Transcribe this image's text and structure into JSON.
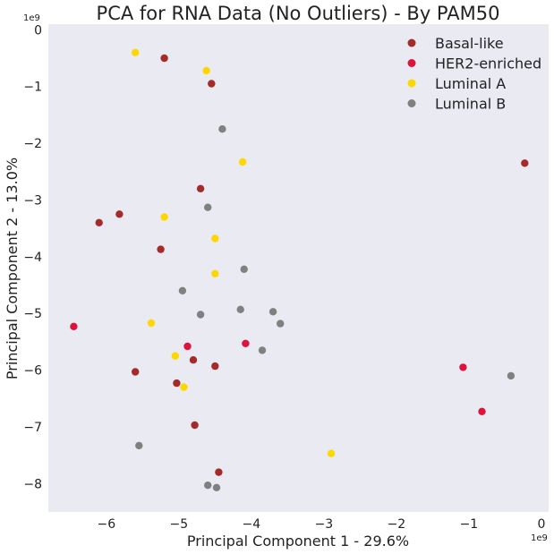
{
  "chart_data": {
    "type": "scatter",
    "title": "PCA for RNA Data (No Outliers) - By PAM50",
    "xlabel": "Principal Component 1 - 29.6%",
    "ylabel": "Principal Component 2 - 13.0%",
    "x_offset_label": "1e9",
    "y_offset_label": "1e9",
    "xlim": [
      -6.8,
      0.1
    ],
    "ylim": [
      -8.5,
      0.1
    ],
    "x_ticks": [
      -6,
      -5,
      -4,
      -3,
      -2,
      -1,
      0
    ],
    "y_ticks": [
      0,
      -1,
      -2,
      -3,
      -4,
      -5,
      -6,
      -7,
      -8
    ],
    "x_tick_labels": [
      "−6",
      "−5",
      "−4",
      "−3",
      "−2",
      "−1",
      "0"
    ],
    "y_tick_labels": [
      "0",
      "−1",
      "−2",
      "−3",
      "−4",
      "−5",
      "−6",
      "−7",
      "−8"
    ],
    "grid": false,
    "legend_position": "top-right",
    "background": "#eaeaf2",
    "series": [
      {
        "name": "Basal-like",
        "color": "#a52a2a",
        "points": [
          [
            -5.2,
            -0.5
          ],
          [
            -4.55,
            -0.95
          ],
          [
            -0.23,
            -2.35
          ],
          [
            -4.7,
            -2.8
          ],
          [
            -5.82,
            -3.25
          ],
          [
            -6.1,
            -3.4
          ],
          [
            -5.25,
            -3.87
          ],
          [
            -4.8,
            -5.82
          ],
          [
            -5.6,
            -6.03
          ],
          [
            -4.5,
            -5.93
          ],
          [
            -5.03,
            -6.23
          ],
          [
            -4.78,
            -6.97
          ],
          [
            -4.45,
            -7.8
          ]
        ]
      },
      {
        "name": "HER2-enriched",
        "color": "#dc143c",
        "points": [
          [
            -6.45,
            -5.23
          ],
          [
            -4.88,
            -5.58
          ],
          [
            -4.08,
            -5.53
          ],
          [
            -1.08,
            -5.95
          ],
          [
            -0.82,
            -6.73
          ]
        ]
      },
      {
        "name": "Luminal A",
        "color": "#ffd700",
        "points": [
          [
            -5.6,
            -0.4
          ],
          [
            -4.62,
            -0.72
          ],
          [
            -4.12,
            -2.33
          ],
          [
            -5.2,
            -3.3
          ],
          [
            -4.5,
            -3.68
          ],
          [
            -4.5,
            -4.3
          ],
          [
            -5.38,
            -5.17
          ],
          [
            -5.05,
            -5.75
          ],
          [
            -4.93,
            -6.3
          ],
          [
            -2.9,
            -7.47
          ]
        ]
      },
      {
        "name": "Luminal B",
        "color": "#808080",
        "points": [
          [
            -4.4,
            -1.75
          ],
          [
            -4.6,
            -3.13
          ],
          [
            -4.1,
            -4.22
          ],
          [
            -4.95,
            -4.6
          ],
          [
            -4.7,
            -5.02
          ],
          [
            -4.15,
            -4.93
          ],
          [
            -3.7,
            -4.97
          ],
          [
            -3.6,
            -5.18
          ],
          [
            -3.85,
            -5.65
          ],
          [
            -0.42,
            -6.1
          ],
          [
            -5.55,
            -7.33
          ],
          [
            -4.6,
            -8.03
          ],
          [
            -4.48,
            -8.07
          ]
        ]
      }
    ]
  }
}
